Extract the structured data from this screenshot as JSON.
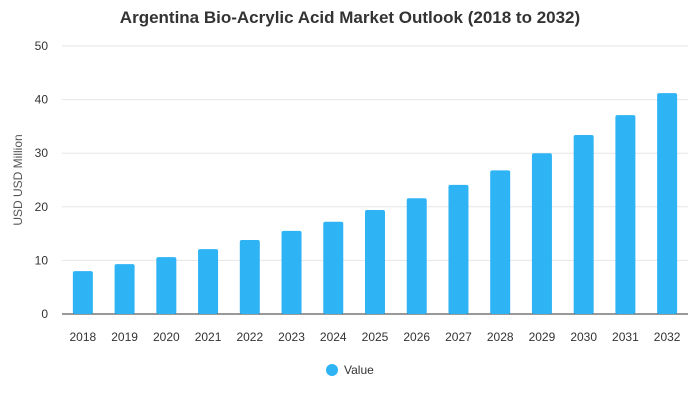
{
  "chart_data": {
    "type": "bar",
    "title": "Argentina Bio-Acrylic Acid Market Outlook (2018 to 2032)",
    "xlabel": "",
    "ylabel": "USD USD Million",
    "ylim": [
      0,
      50
    ],
    "yticks": [
      0,
      10,
      20,
      30,
      40,
      50
    ],
    "categories": [
      "2018",
      "2019",
      "2020",
      "2021",
      "2022",
      "2023",
      "2024",
      "2025",
      "2026",
      "2027",
      "2028",
      "2029",
      "2030",
      "2031",
      "2032"
    ],
    "series": [
      {
        "name": "Value",
        "color": "#2eb3f5",
        "values": [
          8.0,
          9.3,
          10.6,
          12.1,
          13.8,
          15.5,
          17.2,
          19.4,
          21.6,
          24.1,
          26.8,
          30.0,
          33.4,
          37.1,
          41.2
        ]
      }
    ],
    "grid": true,
    "legend_position": "bottom-center"
  }
}
